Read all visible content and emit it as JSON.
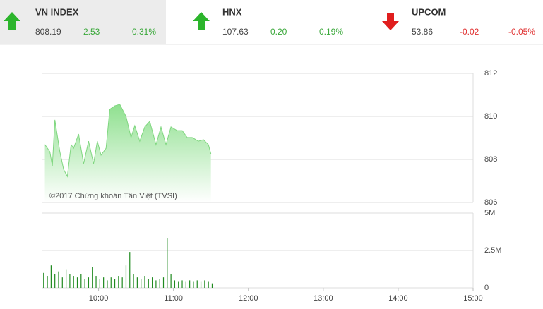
{
  "header": {
    "tickers": [
      {
        "name": "VN INDEX",
        "value": "808.19",
        "change": "2.53",
        "percent": "0.31%",
        "direction": "up",
        "selected": true
      },
      {
        "name": "HNX",
        "value": "107.63",
        "change": "0.20",
        "percent": "0.19%",
        "direction": "up",
        "selected": false
      },
      {
        "name": "UPCOM",
        "value": "53.86",
        "change": "-0.02",
        "percent": "-0.05%",
        "direction": "down",
        "selected": false
      }
    ]
  },
  "chart_data": [
    {
      "type": "area",
      "annotation": "©2017 Chứng khoán Tân Việt (TVSI)",
      "color": "#7fd67f",
      "x": [
        557,
        561,
        563,
        565,
        569,
        572,
        575,
        578,
        580,
        584,
        588,
        592,
        596,
        599,
        602,
        606,
        609,
        613,
        617,
        622,
        626,
        629,
        633,
        637,
        641,
        646,
        650,
        654,
        658,
        663,
        667,
        671,
        675,
        680,
        684,
        688,
        690
      ],
      "values": [
        808.69,
        808.36,
        807.7,
        809.84,
        808.36,
        807.54,
        807.21,
        808.69,
        808.52,
        809.18,
        807.8,
        808.85,
        807.8,
        808.85,
        808.2,
        808.52,
        810.33,
        810.49,
        810.56,
        810.0,
        809.02,
        809.57,
        808.85,
        809.51,
        809.77,
        808.69,
        809.51,
        808.69,
        809.51,
        809.34,
        809.34,
        809.02,
        809.02,
        808.85,
        808.92,
        808.69,
        808.26
      ],
      "xlim": [
        555,
        900
      ],
      "ylim": [
        806,
        812
      ],
      "yticks": [
        806,
        808,
        810,
        812
      ],
      "grid": true
    },
    {
      "type": "bar",
      "color": "#1f8a1f",
      "x": [
        556,
        559,
        562,
        565,
        568,
        571,
        574,
        577,
        580,
        583,
        586,
        589,
        592,
        595,
        598,
        601,
        604,
        607,
        610,
        613,
        616,
        619,
        622,
        625,
        628,
        631,
        634,
        637,
        640,
        643,
        646,
        649,
        652,
        655,
        658,
        661,
        664,
        667,
        670,
        673,
        676,
        679,
        682,
        685,
        688,
        691
      ],
      "values": [
        1000000,
        800000,
        1500000,
        900000,
        1100000,
        700000,
        1200000,
        900000,
        800000,
        700000,
        900000,
        600000,
        700000,
        1400000,
        800000,
        600000,
        700000,
        500000,
        700000,
        600000,
        800000,
        700000,
        1500000,
        2400000,
        900000,
        700000,
        600000,
        800000,
        600000,
        700000,
        500000,
        600000,
        700000,
        3300000,
        900000,
        500000,
        400000,
        500000,
        400000,
        500000,
        400000,
        500000,
        400000,
        500000,
        400000,
        300000
      ],
      "xlim": [
        555,
        900
      ],
      "xticks": [
        {
          "value": 600,
          "label": "10:00"
        },
        {
          "value": 660,
          "label": "11:00"
        },
        {
          "value": 720,
          "label": "12:00"
        },
        {
          "value": 780,
          "label": "13:00"
        },
        {
          "value": 840,
          "label": "14:00"
        },
        {
          "value": 900,
          "label": "15:00"
        }
      ],
      "ylim": [
        0,
        5000000
      ],
      "yticks": [
        0,
        {
          "value": 2500000,
          "label": "2.5M"
        },
        {
          "value": 5000000,
          "label": "5M"
        }
      ],
      "grid": true
    }
  ]
}
